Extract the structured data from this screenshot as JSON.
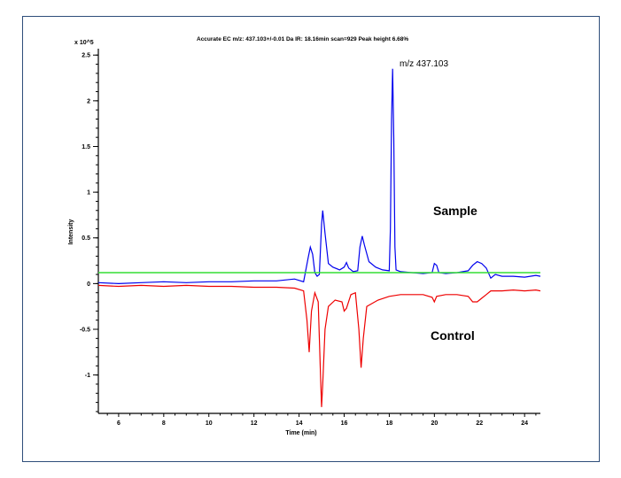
{
  "chart_data": {
    "type": "line",
    "title": "Accurate EC m/z: 437.103+/-0.01 Da  IR: 18.16min scan=929  Peak height 6.68%",
    "xlabel": "Time (min)",
    "ylabel": "Intensity",
    "y_multiplier": "x 10^5",
    "xlim": [
      5.1,
      24.7
    ],
    "ylim": [
      -1.42,
      2.57
    ],
    "xticks": [
      6,
      8,
      10,
      12,
      14,
      16,
      18,
      20,
      22,
      24
    ],
    "yticks": [
      -1,
      -0.5,
      0,
      0.5,
      1,
      1.5,
      2,
      2.5
    ],
    "grid": false,
    "annotations": [
      {
        "text": "m/z 437.103",
        "x": 18.5,
        "y": 2.42
      }
    ],
    "threshold": {
      "y": 0.12,
      "color": "#33dd33"
    },
    "series": [
      {
        "name": "Sample",
        "color": "#0000ee",
        "x": [
          5.1,
          6,
          7,
          8,
          9,
          10,
          11,
          12,
          13,
          13.8,
          14.2,
          14.4,
          14.5,
          14.6,
          14.7,
          14.8,
          14.9,
          15.0,
          15.05,
          15.15,
          15.3,
          15.5,
          15.8,
          16.0,
          16.1,
          16.2,
          16.4,
          16.6,
          16.7,
          16.8,
          16.9,
          17.1,
          17.4,
          17.7,
          18.0,
          18.05,
          18.1,
          18.15,
          18.2,
          18.25,
          18.3,
          18.5,
          19.0,
          19.5,
          19.9,
          20.0,
          20.1,
          20.2,
          20.5,
          21.0,
          21.5,
          21.7,
          21.9,
          22.1,
          22.3,
          22.5,
          22.7,
          23.0,
          23.5,
          24.0,
          24.5,
          24.7
        ],
        "y": [
          0.01,
          0.0,
          0.01,
          0.02,
          0.01,
          0.02,
          0.02,
          0.03,
          0.03,
          0.05,
          0.02,
          0.28,
          0.4,
          0.32,
          0.12,
          0.08,
          0.1,
          0.65,
          0.8,
          0.55,
          0.22,
          0.18,
          0.15,
          0.18,
          0.23,
          0.17,
          0.13,
          0.14,
          0.4,
          0.52,
          0.42,
          0.24,
          0.18,
          0.15,
          0.14,
          0.6,
          1.8,
          2.35,
          1.6,
          0.4,
          0.15,
          0.13,
          0.12,
          0.11,
          0.12,
          0.22,
          0.2,
          0.12,
          0.11,
          0.12,
          0.14,
          0.2,
          0.24,
          0.22,
          0.17,
          0.06,
          0.1,
          0.08,
          0.08,
          0.07,
          0.09,
          0.08
        ]
      },
      {
        "name": "Control",
        "color": "#ee0000",
        "x": [
          5.1,
          6,
          7,
          8,
          9,
          10,
          11,
          12,
          13,
          13.8,
          14.2,
          14.35,
          14.45,
          14.55,
          14.7,
          14.85,
          14.95,
          15.0,
          15.05,
          15.15,
          15.3,
          15.6,
          15.9,
          16.0,
          16.1,
          16.3,
          16.5,
          16.65,
          16.75,
          16.85,
          17.0,
          17.5,
          18.0,
          18.5,
          19.0,
          19.5,
          19.9,
          20.0,
          20.1,
          20.5,
          21.0,
          21.5,
          21.7,
          21.9,
          22.1,
          22.3,
          22.5,
          23.0,
          23.5,
          24.0,
          24.5,
          24.7
        ],
        "y": [
          -0.02,
          -0.03,
          -0.02,
          -0.03,
          -0.02,
          -0.03,
          -0.03,
          -0.04,
          -0.04,
          -0.05,
          -0.08,
          -0.4,
          -0.75,
          -0.3,
          -0.1,
          -0.2,
          -1.0,
          -1.35,
          -1.1,
          -0.5,
          -0.25,
          -0.18,
          -0.2,
          -0.3,
          -0.27,
          -0.12,
          -0.1,
          -0.5,
          -0.92,
          -0.6,
          -0.25,
          -0.18,
          -0.14,
          -0.12,
          -0.12,
          -0.12,
          -0.15,
          -0.2,
          -0.14,
          -0.12,
          -0.12,
          -0.14,
          -0.2,
          -0.2,
          -0.16,
          -0.12,
          -0.08,
          -0.08,
          -0.07,
          -0.08,
          -0.07,
          -0.08
        ]
      }
    ],
    "series_labels": {
      "sample": "Sample",
      "control": "Control"
    }
  }
}
